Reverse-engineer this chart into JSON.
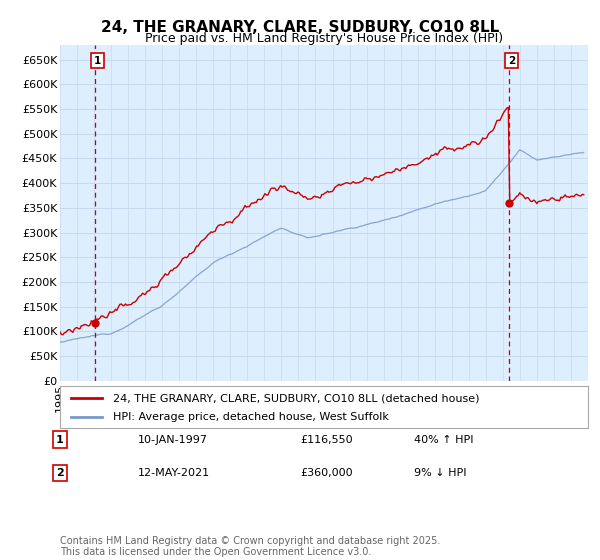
{
  "title": "24, THE GRANARY, CLARE, SUDBURY, CO10 8LL",
  "subtitle": "Price paid vs. HM Land Registry's House Price Index (HPI)",
  "ylim": [
    0,
    680000
  ],
  "yticks": [
    0,
    50000,
    100000,
    150000,
    200000,
    250000,
    300000,
    350000,
    400000,
    450000,
    500000,
    550000,
    600000,
    650000
  ],
  "ytick_labels": [
    "£0",
    "£50K",
    "£100K",
    "£150K",
    "£200K",
    "£250K",
    "£300K",
    "£350K",
    "£400K",
    "£450K",
    "£500K",
    "£550K",
    "£600K",
    "£650K"
  ],
  "xlim_start": 1995.0,
  "xlim_end": 2026.0,
  "plot_bg_color": "#ddeeff",
  "grid_color": "#c8d8ee",
  "red_line_color": "#cc0000",
  "blue_line_color": "#7799cc",
  "marker_color": "#cc0000",
  "dashed_line_color": "#cc0000",
  "sale1_x": 1997.04,
  "sale1_y": 116550,
  "sale2_x": 2021.37,
  "sale2_y": 360000,
  "annotation1_label": "1",
  "annotation1_date": "10-JAN-1997",
  "annotation1_price": "£116,550",
  "annotation1_hpi": "40% ↑ HPI",
  "annotation2_label": "2",
  "annotation2_date": "12-MAY-2021",
  "annotation2_price": "£360,000",
  "annotation2_hpi": "9% ↓ HPI",
  "legend_line1": "24, THE GRANARY, CLARE, SUDBURY, CO10 8LL (detached house)",
  "legend_line2": "HPI: Average price, detached house, West Suffolk",
  "footer": "Contains HM Land Registry data © Crown copyright and database right 2025.\nThis data is licensed under the Open Government Licence v3.0.",
  "title_fontsize": 11,
  "subtitle_fontsize": 9,
  "tick_fontsize": 8,
  "legend_fontsize": 8,
  "footer_fontsize": 7
}
